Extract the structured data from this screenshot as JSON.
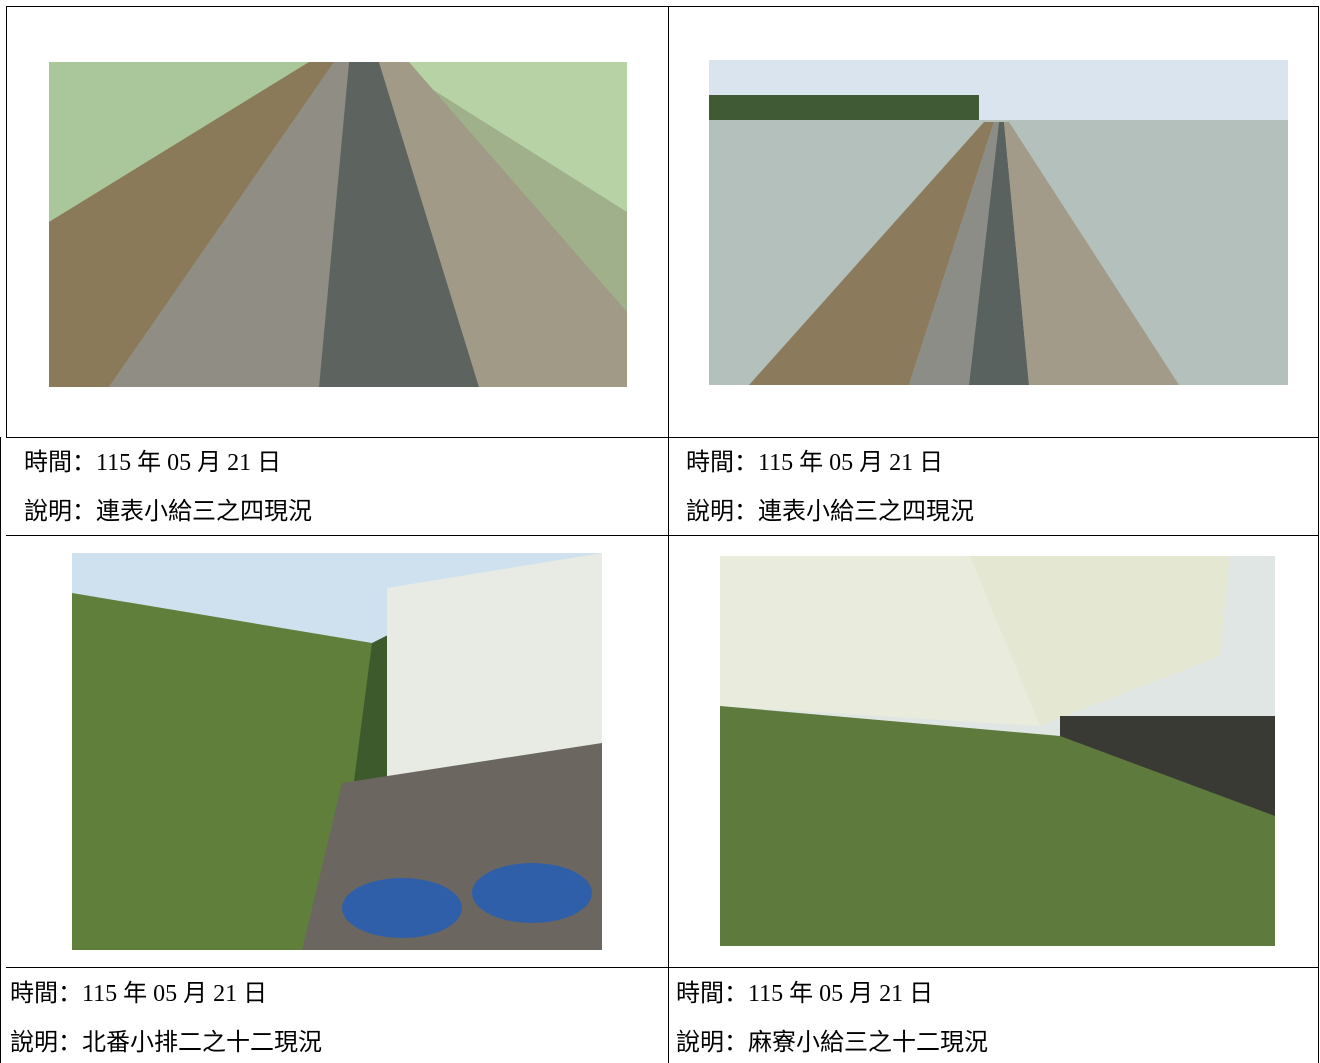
{
  "cells": [
    {
      "time": "時間：115 年 05 月 21 日",
      "description": "說明：連表小給三之四現況"
    },
    {
      "time": "時間：115 年 05 月 21 日",
      "description": "說明：連表小給三之四現況"
    },
    {
      "time": "時間：115 年 05 月 21 日",
      "description": "說明：北番小排二之十二現況"
    },
    {
      "time": "時間：115 年 05 月 21 日",
      "description": "說明：麻寮小給三之十二現況"
    }
  ]
}
